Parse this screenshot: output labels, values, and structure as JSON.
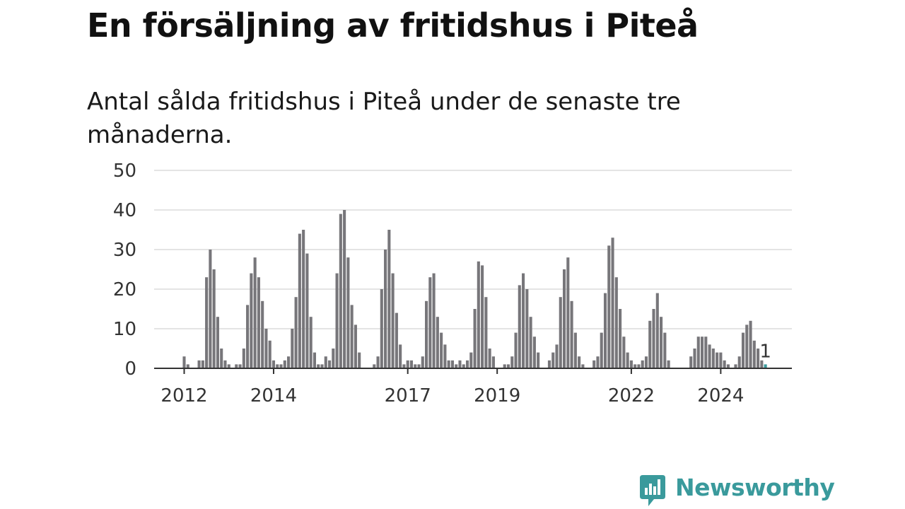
{
  "title": "En försäljning av fritidshus i Piteå",
  "subtitle": "Antal sålda fritidshus i Piteå under de senaste tre månaderna.",
  "brand": {
    "name": "Newsworthy",
    "color": "#3a9a9c",
    "icon": "newsworthy-logo-icon"
  },
  "colors": {
    "bar": "#77767a",
    "highlight": "#3a9a9c",
    "grid": "#dcdcdc",
    "axis": "#333333"
  },
  "chart_data": {
    "type": "bar",
    "ylim": [
      0,
      50
    ],
    "yticks": [
      0,
      10,
      20,
      30,
      40,
      50
    ],
    "xticks": [
      "2012",
      "2014",
      "2017",
      "2019",
      "2022",
      "2024"
    ],
    "grid": true,
    "start_year": 2012,
    "start_month": 1,
    "values": [
      3,
      1,
      0,
      0,
      2,
      2,
      23,
      30,
      25,
      13,
      5,
      2,
      1,
      0,
      1,
      1,
      5,
      16,
      24,
      28,
      23,
      17,
      10,
      7,
      2,
      1,
      1,
      2,
      3,
      10,
      18,
      34,
      35,
      29,
      13,
      4,
      1,
      1,
      3,
      2,
      5,
      24,
      39,
      40,
      28,
      16,
      11,
      4,
      0,
      0,
      0,
      1,
      3,
      20,
      30,
      35,
      24,
      14,
      6,
      1,
      2,
      2,
      1,
      1,
      3,
      17,
      23,
      24,
      13,
      9,
      6,
      2,
      2,
      1,
      2,
      1,
      2,
      4,
      15,
      27,
      26,
      18,
      5,
      3,
      0,
      0,
      1,
      1,
      3,
      9,
      21,
      24,
      20,
      13,
      8,
      4,
      0,
      0,
      2,
      4,
      6,
      18,
      25,
      28,
      17,
      9,
      3,
      1,
      0,
      0,
      2,
      3,
      9,
      19,
      31,
      33,
      23,
      15,
      8,
      4,
      2,
      1,
      1,
      2,
      3,
      12,
      15,
      19,
      13,
      9,
      2,
      0,
      0,
      0,
      0,
      0,
      3,
      5,
      8,
      8,
      8,
      6,
      5,
      4,
      4,
      2,
      1,
      0,
      1,
      3,
      9,
      11,
      12,
      7,
      5,
      2,
      1
    ],
    "last_label": "1"
  }
}
